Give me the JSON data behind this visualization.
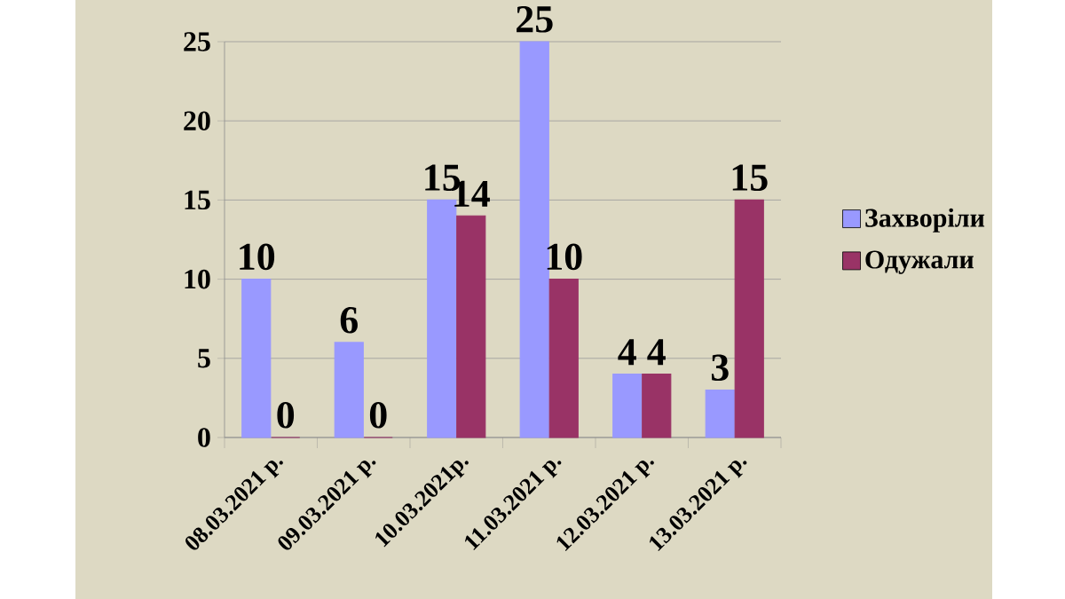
{
  "chart_data": {
    "type": "bar",
    "categories": [
      "08.03.2021 р.",
      "09.03.2021 р.",
      "10.03.2021р.",
      "11.03.2021 р.",
      "12.03.2021 р.",
      "13.03.2021 р."
    ],
    "series": [
      {
        "name": "Захворіли",
        "color": "#9999ff",
        "values": [
          10,
          6,
          15,
          25,
          4,
          3
        ]
      },
      {
        "name": "Одужали",
        "color": "#993366",
        "values": [
          0,
          0,
          14,
          10,
          4,
          15
        ]
      }
    ],
    "ylim": [
      0,
      25
    ],
    "yticks": [
      0,
      5,
      10,
      15,
      20,
      25
    ],
    "grid": "y",
    "legend": "right",
    "data_labels": true
  }
}
